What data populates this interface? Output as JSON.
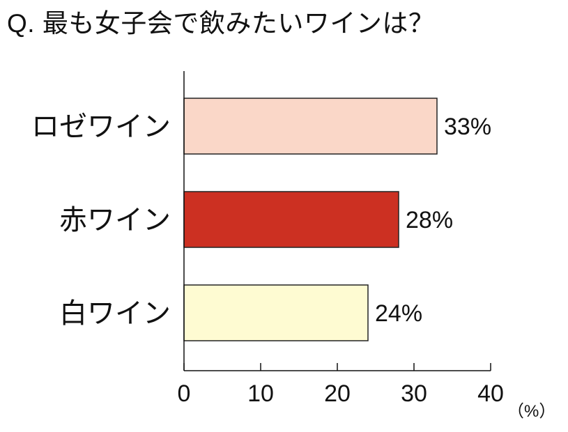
{
  "chart_data": {
    "type": "bar",
    "orientation": "horizontal",
    "title": "Q. 最も女子会で飲みたいワインは？",
    "categories": [
      "ロゼワイン",
      "赤ワイン",
      "白ワイン"
    ],
    "values": [
      33,
      28,
      24
    ],
    "value_labels": [
      "33%",
      "28%",
      "24%"
    ],
    "bar_colors": [
      "#fad7c8",
      "#cc3022",
      "#fefbd2"
    ],
    "bar_stroke": "#222222",
    "xlim": [
      0,
      40
    ],
    "xticks": [
      0,
      10,
      20,
      30,
      40
    ],
    "xtick_labels": [
      "0",
      "10",
      "20",
      "30",
      "40"
    ],
    "x_unit": "（%）",
    "grid": false,
    "legend": "none"
  }
}
